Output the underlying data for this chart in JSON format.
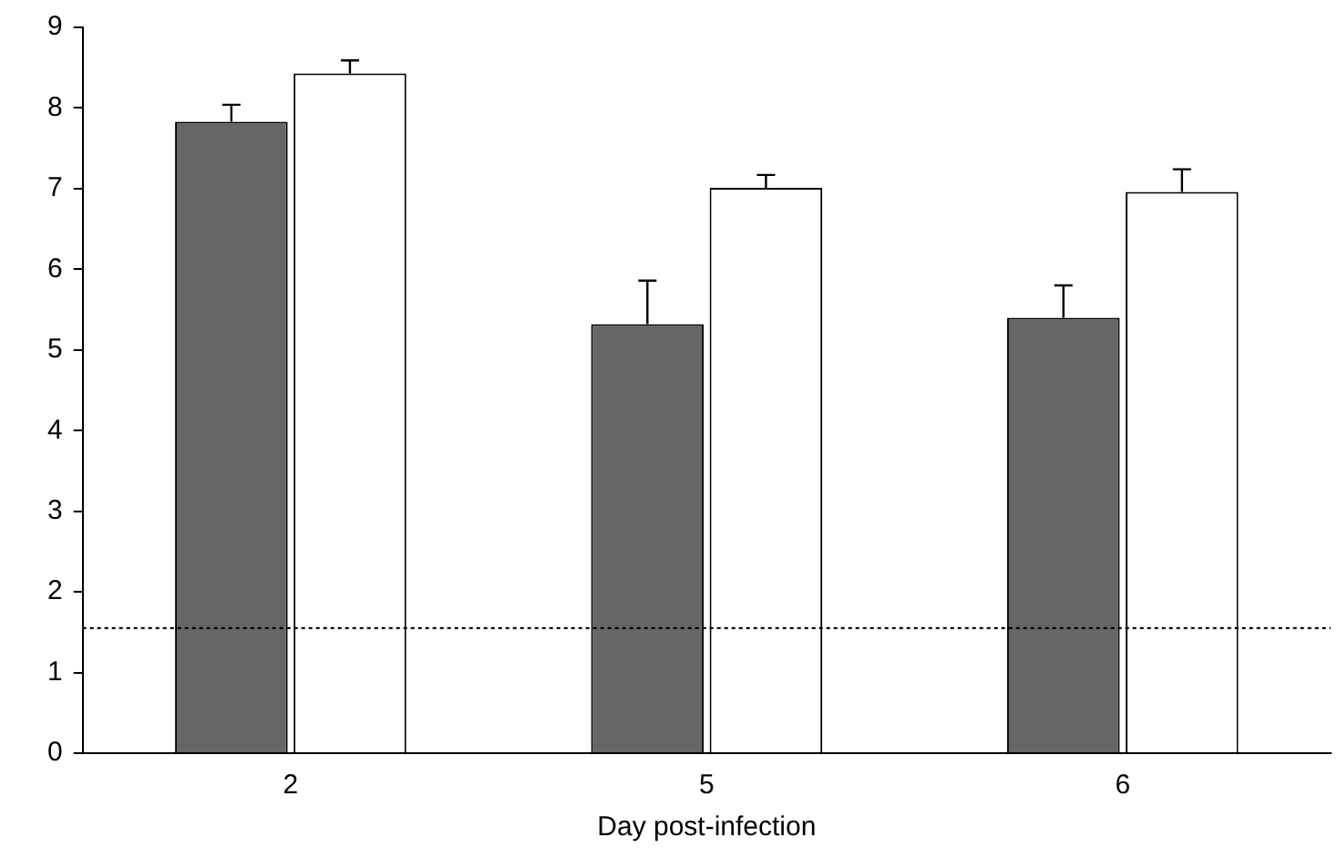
{
  "chart_data": {
    "type": "bar",
    "xlabel": "Day post-infection",
    "categories": [
      "2",
      "5",
      "6"
    ],
    "series": [
      {
        "color": "#666666",
        "values": [
          7.83,
          5.32,
          5.4
        ],
        "errors": [
          [
            7.83,
            8.04
          ],
          [
            5.32,
            5.86
          ],
          [
            5.4,
            5.8
          ]
        ]
      },
      {
        "color": "#ffffff",
        "values": [
          8.43,
          7.01,
          6.96
        ],
        "errors": [
          [
            8.43,
            8.59
          ],
          [
            7.01,
            7.17
          ],
          [
            6.96,
            7.24
          ]
        ]
      }
    ],
    "ylim": [
      0,
      9
    ],
    "yticks": [
      0,
      1,
      2,
      3,
      4,
      5,
      6,
      7,
      8,
      9
    ],
    "grid": false,
    "legend": false,
    "ref_lines": [
      {
        "axis": "y",
        "value": 1.55,
        "line_style": "dotted",
        "color": "#000000"
      }
    ]
  }
}
